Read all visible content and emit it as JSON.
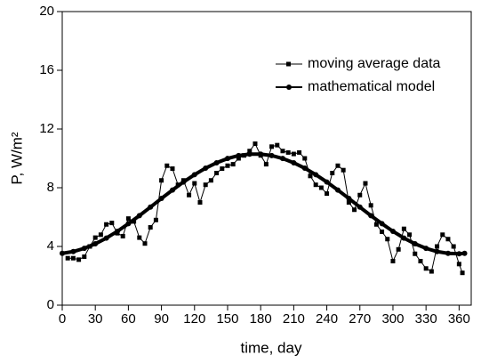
{
  "chart_data": {
    "type": "line",
    "xlabel": "time, day",
    "ylabel": "P, W/m²",
    "xlim": [
      0,
      371
    ],
    "xticks": [
      0,
      30,
      60,
      90,
      120,
      150,
      180,
      210,
      240,
      270,
      300,
      330,
      360
    ],
    "ylim": [
      0,
      20
    ],
    "yticks": [
      0,
      4,
      8,
      12,
      16,
      20
    ],
    "legend": "upper right",
    "series": [
      {
        "name": "moving average data",
        "color": "#000000",
        "marker": "square",
        "x": [
          5,
          10,
          15,
          20,
          25,
          30,
          35,
          40,
          45,
          50,
          55,
          60,
          65,
          70,
          75,
          80,
          85,
          90,
          95,
          100,
          105,
          110,
          115,
          120,
          125,
          130,
          135,
          140,
          145,
          150,
          155,
          160,
          165,
          170,
          175,
          180,
          185,
          190,
          195,
          200,
          205,
          210,
          215,
          220,
          225,
          230,
          235,
          240,
          245,
          250,
          255,
          260,
          265,
          270,
          275,
          280,
          285,
          290,
          295,
          300,
          305,
          310,
          315,
          320,
          325,
          330,
          335,
          340,
          345,
          350,
          355,
          360,
          363
        ],
        "values": [
          3.2,
          3.2,
          3.1,
          3.3,
          4.0,
          4.6,
          4.8,
          5.5,
          5.6,
          4.9,
          4.7,
          5.9,
          5.7,
          4.6,
          4.2,
          5.3,
          5.8,
          8.5,
          9.5,
          9.3,
          8.2,
          8.5,
          7.5,
          8.3,
          7.0,
          8.2,
          8.5,
          9.0,
          9.3,
          9.5,
          9.6,
          10.0,
          10.2,
          10.5,
          11.0,
          10.2,
          9.6,
          10.8,
          10.9,
          10.5,
          10.4,
          10.3,
          10.4,
          10.0,
          8.8,
          8.2,
          8.0,
          7.6,
          9.0,
          9.5,
          9.2,
          7.0,
          6.5,
          7.5,
          8.3,
          6.8,
          5.5,
          5.0,
          4.5,
          3.0,
          3.8,
          5.2,
          4.8,
          3.5,
          3.0,
          2.5,
          2.3,
          4.0,
          4.8,
          4.5,
          4.0,
          2.8,
          2.2
        ]
      },
      {
        "name": "mathematical model",
        "color": "#000000",
        "marker": "circle",
        "x": [
          0,
          10,
          20,
          30,
          40,
          50,
          60,
          70,
          80,
          90,
          100,
          110,
          120,
          130,
          140,
          150,
          160,
          170,
          180,
          190,
          200,
          210,
          220,
          230,
          240,
          250,
          260,
          270,
          280,
          290,
          300,
          310,
          320,
          330,
          340,
          350,
          360,
          365
        ],
        "values": [
          3.53,
          3.65,
          3.87,
          4.18,
          4.57,
          5.03,
          5.55,
          6.1,
          6.68,
          7.27,
          7.84,
          8.39,
          8.89,
          9.33,
          9.7,
          9.99,
          10.19,
          10.29,
          10.29,
          10.19,
          9.99,
          9.7,
          9.33,
          8.89,
          8.39,
          7.84,
          7.27,
          6.68,
          6.1,
          5.55,
          5.03,
          4.57,
          4.18,
          3.87,
          3.65,
          3.53,
          3.5,
          3.53
        ]
      }
    ]
  }
}
